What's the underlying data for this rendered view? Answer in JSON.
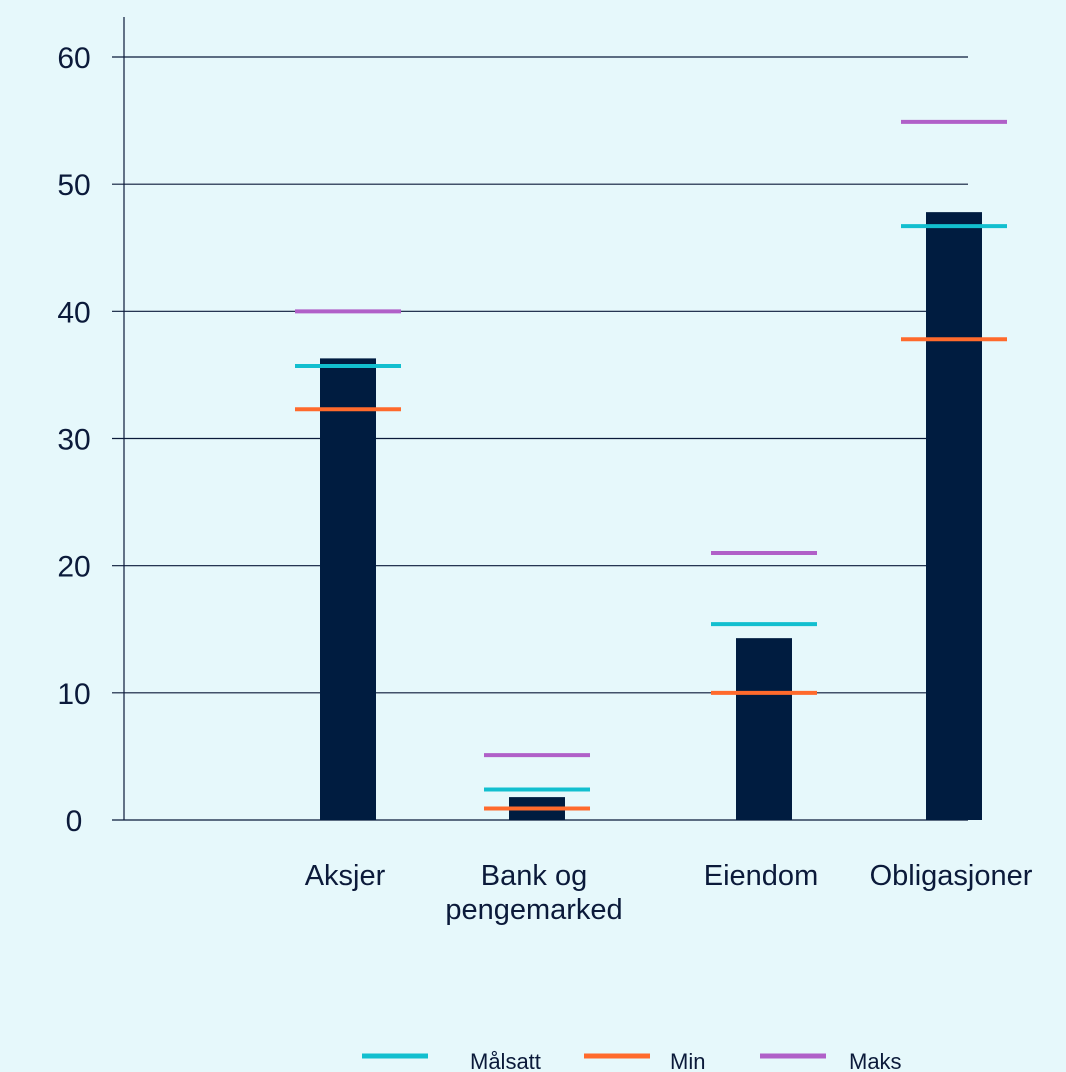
{
  "chart_data": {
    "type": "bar",
    "categories": [
      [
        "Aksjer"
      ],
      [
        "Bank og",
        "pengemarked"
      ],
      [
        "Eiendom"
      ],
      [
        "Obligasjoner"
      ]
    ],
    "bar_values": [
      36.3,
      1.8,
      14.3,
      47.8
    ],
    "markers": [
      {
        "name": "Målsatt",
        "color": "#12bfcf",
        "values": [
          35.7,
          2.4,
          15.4,
          46.7
        ]
      },
      {
        "name": "Min",
        "color": "#ff6a2c",
        "values": [
          32.3,
          0.9,
          10.0,
          37.8
        ]
      },
      {
        "name": "Maks",
        "color": "#b060c8",
        "values": [
          40.0,
          5.1,
          21.0,
          54.9
        ]
      }
    ],
    "bar_color": "#001c40",
    "yticks": [
      0,
      10,
      20,
      30,
      40,
      50,
      60
    ],
    "ylim": [
      0,
      60
    ],
    "grid": true,
    "legend_position": "bottom"
  }
}
